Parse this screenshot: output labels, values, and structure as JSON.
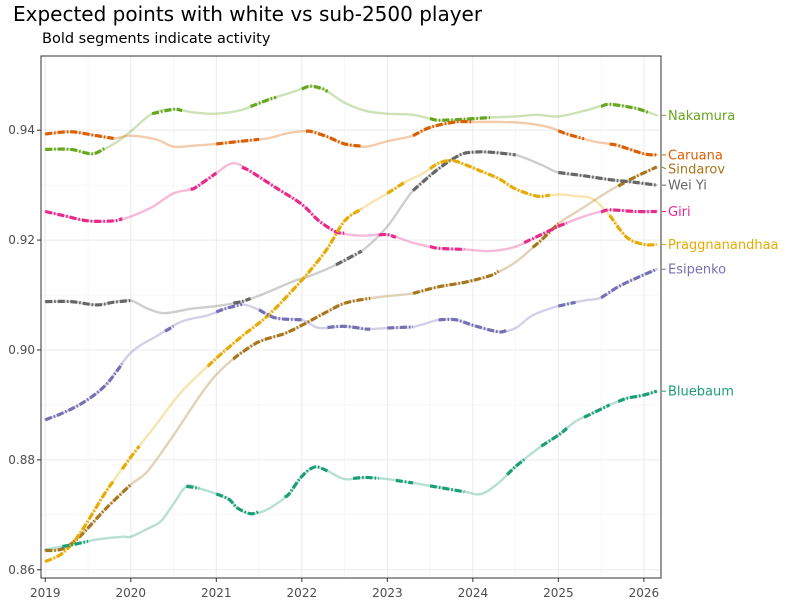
{
  "title": "Expected points with white vs sub-2500 player",
  "subtitle": "Bold segments indicate activity",
  "chart_data": {
    "type": "line",
    "title": "Expected points with white vs sub-2500 player",
    "subtitle": "Bold segments indicate activity",
    "xlabel": "",
    "ylabel": "",
    "xlim": [
      2018.95,
      2026.2
    ],
    "ylim": [
      0.8585,
      0.9535
    ],
    "x_ticks": [
      2019,
      2020,
      2021,
      2022,
      2023,
      2024,
      2025,
      2026
    ],
    "y_ticks": [
      0.86,
      0.88,
      0.9,
      0.92,
      0.94
    ],
    "y_tick_labels": [
      "0.86",
      "0.88",
      "0.90",
      "0.92",
      "0.94"
    ],
    "grid": true,
    "legend": "direct labels at right end of lines",
    "series": [
      {
        "name": "Nakamura",
        "color": "#66a61e",
        "x": [
          2019.0,
          2019.3,
          2019.55,
          2019.8,
          2020.0,
          2020.25,
          2020.5,
          2020.75,
          2021.0,
          2021.3,
          2021.6,
          2021.9,
          2022.1,
          2022.25,
          2022.5,
          2022.75,
          2023.0,
          2023.3,
          2023.6,
          2023.9,
          2024.2,
          2024.5,
          2024.75,
          2025.0,
          2025.3,
          2025.6,
          2025.9,
          2026.15
        ],
        "y": [
          0.9365,
          0.9365,
          0.9357,
          0.9375,
          0.9398,
          0.943,
          0.9438,
          0.9432,
          0.943,
          0.9437,
          0.9455,
          0.947,
          0.948,
          0.9475,
          0.945,
          0.9435,
          0.943,
          0.9428,
          0.9418,
          0.942,
          0.9423,
          0.9425,
          0.9428,
          0.9425,
          0.9435,
          0.9447,
          0.944,
          0.9427
        ],
        "active": [
          [
            2019.0,
            2019.7
          ],
          [
            2020.25,
            2020.6
          ],
          [
            2021.4,
            2021.7
          ],
          [
            2022.0,
            2022.3
          ],
          [
            2023.5,
            2024.2
          ],
          [
            2025.5,
            2026.05
          ]
        ]
      },
      {
        "name": "Caruana",
        "color": "#d95f02",
        "x": [
          2019.0,
          2019.3,
          2019.6,
          2019.8,
          2020.0,
          2020.3,
          2020.5,
          2020.75,
          2021.0,
          2021.3,
          2021.6,
          2021.85,
          2022.1,
          2022.3,
          2022.5,
          2022.75,
          2023.0,
          2023.3,
          2023.5,
          2023.8,
          2024.0,
          2024.3,
          2024.6,
          2024.9,
          2025.1,
          2025.4,
          2025.7,
          2026.0,
          2026.15
        ],
        "y": [
          0.9393,
          0.9397,
          0.939,
          0.9385,
          0.939,
          0.9383,
          0.937,
          0.9372,
          0.9375,
          0.938,
          0.9385,
          0.9395,
          0.9398,
          0.9388,
          0.9375,
          0.937,
          0.938,
          0.939,
          0.9405,
          0.9415,
          0.9415,
          0.9415,
          0.9413,
          0.9405,
          0.9393,
          0.938,
          0.9372,
          0.9357,
          0.9355
        ],
        "active": [
          [
            2019.0,
            2019.8
          ],
          [
            2021.0,
            2021.5
          ],
          [
            2022.05,
            2022.7
          ],
          [
            2023.3,
            2024.0
          ],
          [
            2025.0,
            2025.3
          ],
          [
            2025.6,
            2026.15
          ]
        ]
      },
      {
        "name": "Sindarov",
        "color": "#a6761d",
        "x": [
          2019.0,
          2019.2,
          2019.4,
          2019.7,
          2020.0,
          2020.2,
          2020.5,
          2020.8,
          2021.0,
          2021.25,
          2021.5,
          2021.8,
          2022.0,
          2022.3,
          2022.5,
          2022.75,
          2023.0,
          2023.3,
          2023.6,
          2023.9,
          2024.2,
          2024.5,
          2024.8,
          2025.0,
          2025.3,
          2025.6,
          2025.9,
          2026.15
        ],
        "y": [
          0.8635,
          0.8638,
          0.866,
          0.871,
          0.8755,
          0.878,
          0.8845,
          0.8915,
          0.8955,
          0.899,
          0.9015,
          0.903,
          0.9045,
          0.907,
          0.9085,
          0.9093,
          0.9098,
          0.9103,
          0.9115,
          0.9123,
          0.9135,
          0.916,
          0.92,
          0.923,
          0.926,
          0.929,
          0.9315,
          0.9333
        ],
        "active": [
          [
            2019.0,
            2020.0
          ],
          [
            2021.2,
            2022.8
          ],
          [
            2023.3,
            2024.3
          ],
          [
            2024.7,
            2025.0
          ],
          [
            2025.7,
            2026.15
          ]
        ]
      },
      {
        "name": "Wei Yi",
        "color": "#666666",
        "x": [
          2019.0,
          2019.3,
          2019.6,
          2019.8,
          2020.0,
          2020.2,
          2020.4,
          2020.7,
          2021.0,
          2021.3,
          2021.6,
          2021.9,
          2022.1,
          2022.4,
          2022.7,
          2023.0,
          2023.3,
          2023.6,
          2023.85,
          2024.0,
          2024.2,
          2024.5,
          2024.8,
          2025.0,
          2025.3,
          2025.6,
          2025.9,
          2026.15
        ],
        "y": [
          0.9088,
          0.9088,
          0.9082,
          0.9087,
          0.909,
          0.9075,
          0.9067,
          0.9075,
          0.908,
          0.9088,
          0.9105,
          0.9125,
          0.9135,
          0.9155,
          0.918,
          0.9225,
          0.929,
          0.933,
          0.9355,
          0.936,
          0.936,
          0.9355,
          0.9337,
          0.9323,
          0.9317,
          0.931,
          0.9305,
          0.93
        ],
        "active": [
          [
            2019.0,
            2020.0
          ],
          [
            2021.2,
            2021.4
          ],
          [
            2022.4,
            2022.7
          ],
          [
            2023.3,
            2024.5
          ],
          [
            2025.0,
            2026.15
          ]
        ]
      },
      {
        "name": "Giri",
        "color": "#e7298a",
        "x": [
          2019.0,
          2019.2,
          2019.5,
          2019.8,
          2020.0,
          2020.25,
          2020.5,
          2020.75,
          2021.0,
          2021.2,
          2021.4,
          2021.7,
          2022.0,
          2022.2,
          2022.4,
          2022.7,
          2023.0,
          2023.3,
          2023.6,
          2023.9,
          2024.2,
          2024.5,
          2024.8,
          2025.0,
          2025.3,
          2025.6,
          2025.9,
          2026.15
        ],
        "y": [
          0.9252,
          0.9245,
          0.9235,
          0.9235,
          0.9243,
          0.926,
          0.9285,
          0.9295,
          0.9322,
          0.934,
          0.9325,
          0.9295,
          0.9265,
          0.9235,
          0.9215,
          0.9208,
          0.921,
          0.9195,
          0.9185,
          0.9183,
          0.918,
          0.9188,
          0.921,
          0.9225,
          0.9243,
          0.9255,
          0.9252,
          0.9252
        ],
        "active": [
          [
            2019.0,
            2019.9
          ],
          [
            2020.7,
            2021.0
          ],
          [
            2021.3,
            2022.5
          ],
          [
            2022.9,
            2023.1
          ],
          [
            2023.5,
            2023.9
          ],
          [
            2024.6,
            2025.1
          ],
          [
            2025.5,
            2026.15
          ]
        ]
      },
      {
        "name": "Praggnanandhaa",
        "color": "#e6ab02",
        "x": [
          2019.0,
          2019.2,
          2019.4,
          2019.7,
          2020.0,
          2020.3,
          2020.6,
          2021.0,
          2021.3,
          2021.6,
          2021.9,
          2022.1,
          2022.3,
          2022.5,
          2022.75,
          2023.0,
          2023.2,
          2023.4,
          2023.6,
          2023.75,
          2023.9,
          2024.1,
          2024.3,
          2024.5,
          2024.75,
          2025.0,
          2025.2,
          2025.4,
          2025.6,
          2025.8,
          2026.0,
          2026.15
        ],
        "y": [
          0.8615,
          0.863,
          0.8665,
          0.874,
          0.8805,
          0.8865,
          0.8925,
          0.8985,
          0.9025,
          0.9062,
          0.911,
          0.9145,
          0.9185,
          0.9235,
          0.9262,
          0.9285,
          0.9305,
          0.932,
          0.934,
          0.9345,
          0.9338,
          0.9325,
          0.9312,
          0.9293,
          0.928,
          0.9283,
          0.928,
          0.9275,
          0.9245,
          0.9205,
          0.9192,
          0.9192
        ],
        "active": [
          [
            2019.0,
            2019.8
          ],
          [
            2019.9,
            2020.1
          ],
          [
            2020.9,
            2022.7
          ],
          [
            2023.0,
            2023.2
          ],
          [
            2023.5,
            2024.9
          ],
          [
            2025.6,
            2026.15
          ]
        ]
      },
      {
        "name": "Esipenko",
        "color": "#7570b3",
        "x": [
          2019.0,
          2019.2,
          2019.45,
          2019.7,
          2020.0,
          2020.3,
          2020.6,
          2020.9,
          2021.1,
          2021.3,
          2021.5,
          2021.7,
          2022.0,
          2022.2,
          2022.5,
          2022.75,
          2023.0,
          2023.3,
          2023.6,
          2023.8,
          2024.0,
          2024.3,
          2024.5,
          2024.7,
          2025.0,
          2025.3,
          2025.5,
          2025.7,
          2025.9,
          2026.15
        ],
        "y": [
          0.8873,
          0.8885,
          0.8905,
          0.8935,
          0.8995,
          0.9025,
          0.9052,
          0.9063,
          0.9075,
          0.9083,
          0.9073,
          0.9058,
          0.9055,
          0.904,
          0.9043,
          0.9038,
          0.904,
          0.9042,
          0.9055,
          0.9055,
          0.9045,
          0.9033,
          0.904,
          0.9063,
          0.908,
          0.909,
          0.9095,
          0.9115,
          0.913,
          0.9147
        ],
        "active": [
          [
            2019.0,
            2019.9
          ],
          [
            2020.4,
            2020.5
          ],
          [
            2021.0,
            2021.3
          ],
          [
            2021.5,
            2022.0
          ],
          [
            2022.3,
            2022.8
          ],
          [
            2023.0,
            2023.3
          ],
          [
            2023.6,
            2024.4
          ],
          [
            2025.0,
            2025.2
          ],
          [
            2025.5,
            2026.15
          ]
        ]
      },
      {
        "name": "Bluebaum",
        "color": "#1b9e77",
        "x": [
          2019.0,
          2019.3,
          2019.6,
          2019.9,
          2020.0,
          2020.2,
          2020.35,
          2020.5,
          2020.65,
          2020.8,
          2021.0,
          2021.15,
          2021.25,
          2021.4,
          2021.6,
          2021.85,
          2022.0,
          2022.15,
          2022.3,
          2022.5,
          2022.75,
          2023.0,
          2023.3,
          2023.6,
          2023.9,
          2024.1,
          2024.3,
          2024.5,
          2024.8,
          2025.0,
          2025.2,
          2025.4,
          2025.6,
          2025.8,
          2026.0,
          2026.15
        ],
        "y": [
          0.8637,
          0.8645,
          0.8655,
          0.866,
          0.866,
          0.8675,
          0.8688,
          0.872,
          0.8752,
          0.8748,
          0.8738,
          0.8728,
          0.8712,
          0.8702,
          0.871,
          0.8738,
          0.877,
          0.8787,
          0.878,
          0.8765,
          0.8768,
          0.8765,
          0.8758,
          0.875,
          0.8742,
          0.8738,
          0.8758,
          0.8788,
          0.8825,
          0.8845,
          0.887,
          0.8885,
          0.89,
          0.8912,
          0.8918,
          0.8925
        ],
        "active": [
          [
            2019.2,
            2019.5
          ],
          [
            2020.65,
            2020.8
          ],
          [
            2021.0,
            2021.5
          ],
          [
            2021.8,
            2022.3
          ],
          [
            2022.6,
            2022.9
          ],
          [
            2023.1,
            2023.3
          ],
          [
            2023.5,
            2023.9
          ],
          [
            2024.4,
            2024.6
          ],
          [
            2024.8,
            2025.1
          ],
          [
            2025.3,
            2025.6
          ],
          [
            2025.7,
            2026.15
          ]
        ]
      }
    ]
  }
}
